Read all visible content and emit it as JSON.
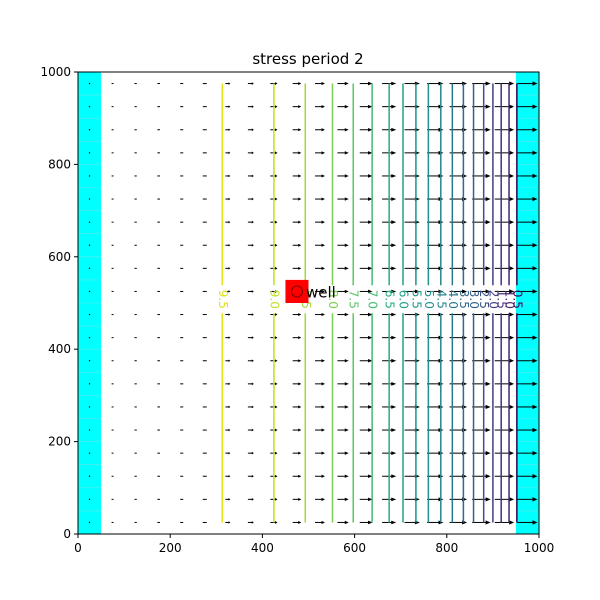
{
  "chart_data": {
    "type": "contour",
    "title": "stress period 2",
    "xlim": [
      0,
      1000
    ],
    "ylim": [
      0,
      1000
    ],
    "x_ticks": [
      0,
      200,
      400,
      600,
      800,
      1000
    ],
    "y_ticks": [
      0,
      200,
      400,
      600,
      800,
      1000
    ],
    "constant_head_bands": [
      {
        "x0": 0,
        "x1": 50,
        "color": "#00ffff"
      },
      {
        "x0": 950,
        "x1": 1000,
        "color": "#00ffff"
      }
    ],
    "contour_y_range": [
      25,
      975
    ],
    "contours": [
      {
        "label": "9.5",
        "x": 313,
        "color": "#dfe318"
      },
      {
        "label": "9.0",
        "x": 425,
        "color": "#c2df23"
      },
      {
        "label": "8.5",
        "x": 493,
        "color": "#a2da37"
      },
      {
        "label": "8.0",
        "x": 552,
        "color": "#7ad151"
      },
      {
        "label": "7.5",
        "x": 597,
        "color": "#5cc863"
      },
      {
        "label": "7.0",
        "x": 638,
        "color": "#3fbc73"
      },
      {
        "label": "6.5",
        "x": 675,
        "color": "#28ae80"
      },
      {
        "label": "6.0",
        "x": 705,
        "color": "#1fa088"
      },
      {
        "label": "5.5",
        "x": 733,
        "color": "#1f958b"
      },
      {
        "label": "5.0",
        "x": 760,
        "color": "#21918c"
      },
      {
        "label": "4.5",
        "x": 787,
        "color": "#25848e"
      },
      {
        "label": "4.0",
        "x": 812,
        "color": "#2a788e"
      },
      {
        "label": "3.5",
        "x": 836,
        "color": "#2f6b8e"
      },
      {
        "label": "3.0",
        "x": 858,
        "color": "#355f8d"
      },
      {
        "label": "2.5",
        "x": 880,
        "color": "#3b528b"
      },
      {
        "label": "2.0",
        "x": 900,
        "color": "#424086"
      },
      {
        "label": "1.5",
        "x": 918,
        "color": "#46337e"
      },
      {
        "label": "1.0",
        "x": 935,
        "color": "#482374"
      },
      {
        "label": "0.5",
        "x": 952,
        "color": "#440154"
      }
    ],
    "contour_label_y": 508,
    "well": {
      "label": "well",
      "x": 475,
      "y": 525,
      "cell_x0": 450,
      "cell_x1": 500,
      "cell_y0": 500,
      "cell_y1": 550,
      "color": "#ff0000"
    },
    "quiver": {
      "x_centers": [
        25,
        75,
        125,
        175,
        225,
        275,
        325,
        375,
        425,
        475,
        525,
        575,
        625,
        675,
        725,
        775,
        825,
        875,
        925,
        975
      ],
      "y_centers": [
        25,
        75,
        125,
        175,
        225,
        275,
        325,
        375,
        425,
        475,
        525,
        575,
        625,
        675,
        725,
        775,
        825,
        875,
        925,
        975
      ],
      "magnitude": [
        0,
        0.3,
        0.5,
        0.7,
        1.0,
        1.6,
        2.2,
        2.9,
        3.7,
        4.6,
        5.5,
        6.4,
        7.3,
        8.2,
        9.0,
        9.7,
        10.4,
        11.0,
        11.6,
        12.0
      ],
      "color": "#000000"
    }
  }
}
